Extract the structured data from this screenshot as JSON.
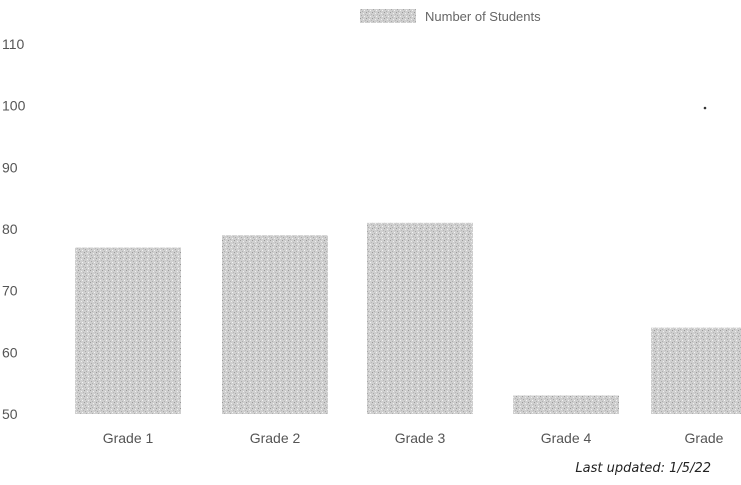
{
  "chart_data": {
    "type": "bar",
    "categories": [
      "Grade 1",
      "Grade 2",
      "Grade 3",
      "Grade 4",
      "Grade"
    ],
    "series": [
      {
        "name": "Number of Students",
        "values": [
          77,
          79,
          81,
          53,
          64
        ]
      }
    ],
    "yticks": [
      "110",
      "100",
      "90",
      "80",
      "70",
      "60",
      "50"
    ],
    "ylim": [
      50,
      110
    ],
    "grid": false,
    "legend_position": "top-center",
    "bar_color": "#c8c8c8"
  },
  "footnote": "Last updated: 1/5/22"
}
